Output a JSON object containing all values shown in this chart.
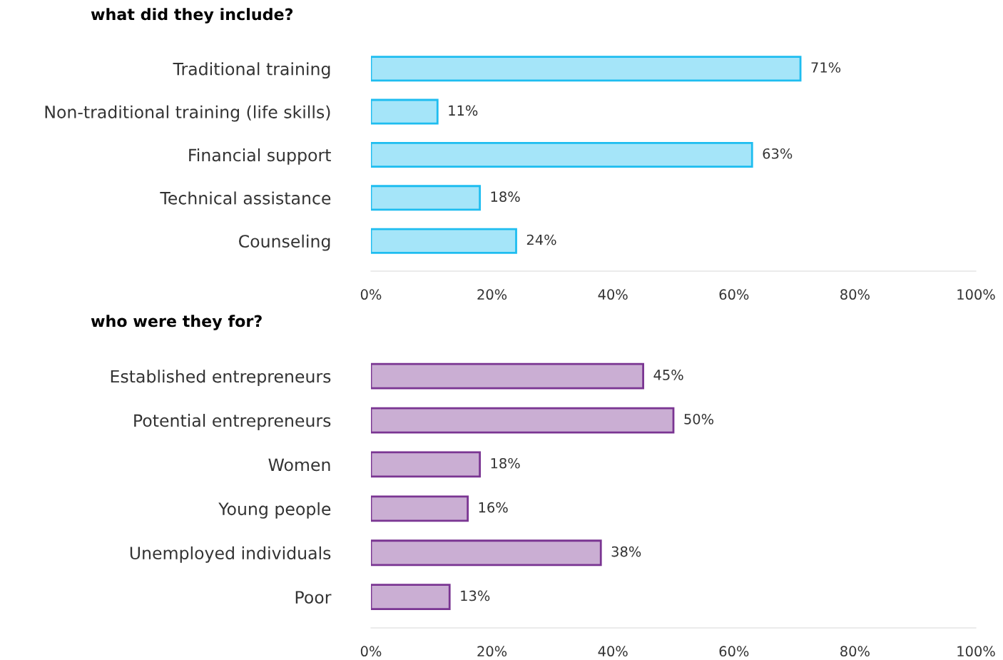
{
  "chart_data": [
    {
      "type": "bar",
      "orientation": "horizontal",
      "title": "what did they include?",
      "categories": [
        "Traditional training",
        "Non-traditional training (life skills)",
        "Financial support",
        "Technical assistance",
        "Counseling"
      ],
      "values": [
        71,
        11,
        63,
        18,
        24
      ],
      "value_labels": [
        "71%",
        "11%",
        "63%",
        "18%",
        "24%"
      ],
      "color": "#1ebdf0",
      "xlim": [
        0,
        100
      ],
      "xticks": [
        {
          "value": 0,
          "label": "0%"
        },
        {
          "value": 20,
          "label": "20%"
        },
        {
          "value": 40,
          "label": "40%"
        },
        {
          "value": 60,
          "label": "60%"
        },
        {
          "value": 80,
          "label": "80%"
        },
        {
          "value": 100,
          "label": "100%"
        }
      ],
      "grid": false
    },
    {
      "type": "bar",
      "orientation": "horizontal",
      "title": "who were they for?",
      "categories": [
        "Established entrepreneurs",
        "Potential entrepreneurs",
        "Women",
        "Young people",
        "Unemployed individuals",
        "Poor"
      ],
      "values": [
        45,
        50,
        18,
        16,
        38,
        13
      ],
      "value_labels": [
        "45%",
        "50%",
        "18%",
        "16%",
        "38%",
        "13%"
      ],
      "color": "#7a3592",
      "xlim": [
        0,
        100
      ],
      "xticks": [
        {
          "value": 0,
          "label": "0%"
        },
        {
          "value": 20,
          "label": "20%"
        },
        {
          "value": 40,
          "label": "40%"
        },
        {
          "value": 60,
          "label": "60%"
        },
        {
          "value": 80,
          "label": "80%"
        },
        {
          "value": 100,
          "label": "100%"
        }
      ],
      "grid": false
    }
  ]
}
